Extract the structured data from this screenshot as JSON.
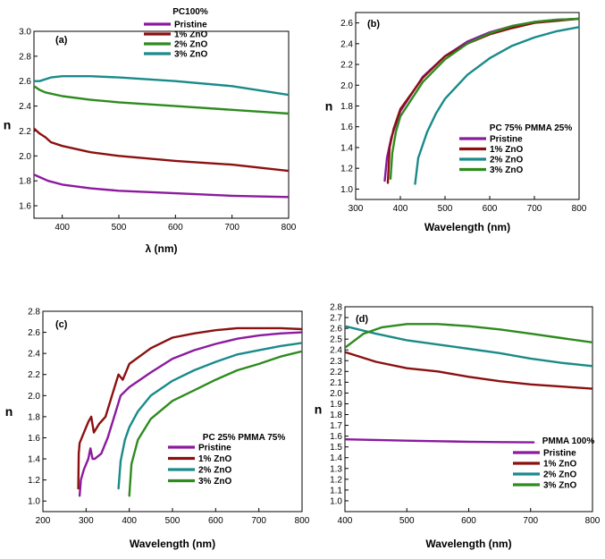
{
  "chart_data": [
    {
      "type": "line",
      "panel": "(a)",
      "title": "PC100%",
      "xlabel": "λ (nm)",
      "ylabel": "n",
      "xlim": [
        350,
        800
      ],
      "ylim": [
        1.5,
        3.0
      ],
      "xticks": [
        400,
        500,
        600,
        700,
        800
      ],
      "yticks": [
        1.6,
        1.8,
        2.0,
        2.2,
        2.4,
        2.6,
        2.8,
        3.0
      ],
      "ytick_decimals": 1,
      "legend_position": "top-center",
      "series": [
        {
          "name": "Pristine",
          "color": "#8b1a9e",
          "x": [
            350,
            360,
            375,
            400,
            450,
            500,
            600,
            700,
            800
          ],
          "y": [
            1.85,
            1.83,
            1.8,
            1.77,
            1.74,
            1.72,
            1.7,
            1.68,
            1.67
          ]
        },
        {
          "name": "1% ZnO",
          "color": "#8b1010",
          "x": [
            350,
            360,
            370,
            380,
            400,
            450,
            500,
            600,
            700,
            800
          ],
          "y": [
            2.22,
            2.18,
            2.15,
            2.11,
            2.08,
            2.03,
            2.0,
            1.96,
            1.93,
            1.88
          ]
        },
        {
          "name": "2% ZnO",
          "color": "#2e8b1e",
          "x": [
            350,
            360,
            370,
            380,
            400,
            450,
            500,
            600,
            700,
            800
          ],
          "y": [
            2.56,
            2.53,
            2.51,
            2.5,
            2.48,
            2.45,
            2.43,
            2.4,
            2.37,
            2.34
          ]
        },
        {
          "name": "3% ZnO",
          "color": "#1a8a8a",
          "x": [
            350,
            360,
            380,
            400,
            450,
            500,
            600,
            700,
            800
          ],
          "y": [
            2.6,
            2.6,
            2.63,
            2.64,
            2.64,
            2.63,
            2.6,
            2.56,
            2.49
          ]
        }
      ]
    },
    {
      "type": "line",
      "panel": "(b)",
      "title": "PC 75% PMMA 25%",
      "xlabel": "Wavelength (nm)",
      "ylabel": "n",
      "xlim": [
        300,
        800
      ],
      "ylim": [
        0.9,
        2.7
      ],
      "xticks": [
        300,
        400,
        500,
        600,
        700,
        800
      ],
      "yticks": [
        1.0,
        1.2,
        1.4,
        1.6,
        1.8,
        2.0,
        2.2,
        2.4,
        2.6
      ],
      "ytick_decimals": 1,
      "legend_position": "middle-right",
      "series": [
        {
          "name": "Pristine",
          "color": "#8b1a9e",
          "x": [
            365,
            370,
            380,
            400,
            450,
            500,
            550,
            600,
            650,
            700,
            750,
            800
          ],
          "y": [
            1.08,
            1.3,
            1.5,
            1.75,
            2.08,
            2.28,
            2.42,
            2.51,
            2.57,
            2.61,
            2.63,
            2.64
          ]
        },
        {
          "name": "1% ZnO",
          "color": "#8b1010",
          "x": [
            372,
            376,
            385,
            400,
            450,
            500,
            550,
            600,
            650,
            700,
            750,
            800
          ],
          "y": [
            1.06,
            1.4,
            1.58,
            1.77,
            2.07,
            2.28,
            2.4,
            2.49,
            2.55,
            2.6,
            2.62,
            2.64
          ]
        },
        {
          "name": "2% ZnO",
          "color": "#1a8a8a",
          "x": [
            433,
            440,
            460,
            480,
            500,
            550,
            600,
            650,
            700,
            750,
            800
          ],
          "y": [
            1.05,
            1.3,
            1.55,
            1.73,
            1.87,
            2.1,
            2.26,
            2.38,
            2.46,
            2.52,
            2.56
          ]
        },
        {
          "name": "3% ZnO",
          "color": "#2e8b1e",
          "x": [
            378,
            382,
            390,
            400,
            450,
            500,
            550,
            600,
            650,
            700,
            750,
            800
          ],
          "y": [
            1.1,
            1.35,
            1.55,
            1.7,
            2.03,
            2.25,
            2.4,
            2.5,
            2.57,
            2.61,
            2.63,
            2.64
          ]
        }
      ]
    },
    {
      "type": "line",
      "panel": "(c)",
      "title": "PC 25% PMMA 75%",
      "xlabel": "Wavelength (nm)",
      "ylabel": "n",
      "xlim": [
        200,
        800
      ],
      "ylim": [
        0.9,
        2.8
      ],
      "xticks": [
        200,
        300,
        400,
        500,
        600,
        700,
        800
      ],
      "yticks": [
        1.0,
        1.2,
        1.4,
        1.6,
        1.8,
        2.0,
        2.2,
        2.4,
        2.6,
        2.8
      ],
      "ytick_decimals": 1,
      "legend_position": "lower-right",
      "series": [
        {
          "name": "Pristine",
          "color": "#8b1a9e",
          "x": [
            285,
            288,
            295,
            305,
            310,
            315,
            320,
            335,
            350,
            365,
            380,
            400,
            450,
            500,
            550,
            600,
            650,
            700,
            750,
            800
          ],
          "y": [
            1.05,
            1.2,
            1.3,
            1.4,
            1.5,
            1.4,
            1.4,
            1.45,
            1.6,
            1.8,
            2.0,
            2.08,
            2.22,
            2.35,
            2.43,
            2.49,
            2.54,
            2.57,
            2.59,
            2.6
          ]
        },
        {
          "name": "1% ZnO",
          "color": "#8b1010",
          "x": [
            282,
            283,
            285,
            295,
            305,
            312,
            318,
            330,
            345,
            360,
            375,
            385,
            400,
            450,
            500,
            550,
            600,
            650,
            700,
            750,
            800
          ],
          "y": [
            1.12,
            1.45,
            1.55,
            1.65,
            1.75,
            1.8,
            1.65,
            1.73,
            1.8,
            2.0,
            2.2,
            2.15,
            2.3,
            2.45,
            2.55,
            2.59,
            2.62,
            2.64,
            2.64,
            2.64,
            2.63
          ]
        },
        {
          "name": "2% ZnO",
          "color": "#1a8a8a",
          "x": [
            375,
            380,
            390,
            400,
            420,
            450,
            500,
            550,
            600,
            650,
            700,
            750,
            800
          ],
          "y": [
            1.12,
            1.38,
            1.58,
            1.7,
            1.85,
            2.0,
            2.14,
            2.24,
            2.32,
            2.39,
            2.43,
            2.47,
            2.5
          ]
        },
        {
          "name": "3% ZnO",
          "color": "#2e8b1e",
          "x": [
            400,
            405,
            420,
            450,
            500,
            550,
            600,
            650,
            700,
            750,
            800
          ],
          "y": [
            1.05,
            1.35,
            1.58,
            1.78,
            1.95,
            2.05,
            2.15,
            2.24,
            2.3,
            2.37,
            2.42
          ]
        }
      ]
    },
    {
      "type": "line",
      "panel": "(d)",
      "title": "PMMA 100%",
      "xlabel": "Wavelength (nm)",
      "ylabel": "n",
      "xlim": [
        400,
        800
      ],
      "ylim": [
        0.9,
        2.8
      ],
      "xticks": [
        400,
        500,
        600,
        700,
        800
      ],
      "yticks": [
        1.0,
        1.1,
        1.2,
        1.3,
        1.4,
        1.5,
        1.6,
        1.7,
        1.8,
        1.9,
        2.0,
        2.1,
        2.2,
        2.3,
        2.4,
        2.5,
        2.6,
        2.7,
        2.8
      ],
      "ytick_decimals": 1,
      "legend_position": "lower-right",
      "series": [
        {
          "name": "Pristine",
          "color": "#8b1a9e",
          "x": [
            400,
            450,
            500,
            550,
            600,
            650,
            700,
            705
          ],
          "y": [
            1.57,
            1.565,
            1.558,
            1.553,
            1.548,
            1.545,
            1.542,
            1.542
          ]
        },
        {
          "name": "1% ZnO",
          "color": "#8b1010",
          "x": [
            400,
            450,
            500,
            550,
            600,
            650,
            700,
            750,
            800
          ],
          "y": [
            2.38,
            2.29,
            2.23,
            2.2,
            2.15,
            2.11,
            2.08,
            2.06,
            2.04
          ]
        },
        {
          "name": "2% ZnO",
          "color": "#1a8a8a",
          "x": [
            400,
            450,
            500,
            550,
            600,
            650,
            700,
            750,
            800
          ],
          "y": [
            2.62,
            2.55,
            2.49,
            2.45,
            2.41,
            2.37,
            2.32,
            2.28,
            2.25
          ]
        },
        {
          "name": "3% ZnO",
          "color": "#2e8b1e",
          "x": [
            400,
            430,
            460,
            500,
            520,
            550,
            600,
            650,
            700,
            750,
            800
          ],
          "y": [
            2.42,
            2.55,
            2.61,
            2.64,
            2.64,
            2.64,
            2.62,
            2.59,
            2.55,
            2.51,
            2.47
          ]
        }
      ]
    }
  ]
}
